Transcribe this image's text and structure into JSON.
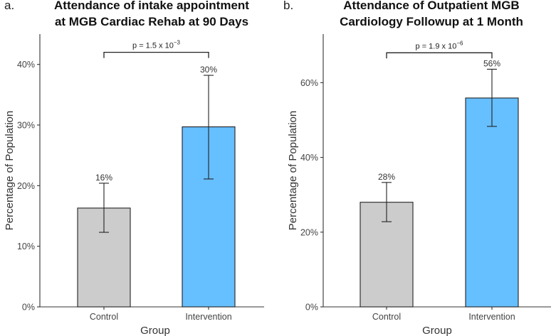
{
  "chart_data": [
    {
      "type": "bar",
      "panel_label": "a.",
      "title_lines": [
        "Attendance of intake appointment",
        "at MGB Cardiac Rehab at 90 Days"
      ],
      "xlabel": "Group",
      "ylabel": "Percentage of Population",
      "categories": [
        "Control",
        "Intervention"
      ],
      "values": [
        16.3,
        29.7
      ],
      "ci_low": [
        12.3,
        21.1
      ],
      "ci_high": [
        20.4,
        38.2
      ],
      "data_labels": [
        "16%",
        "30%"
      ],
      "colors": [
        "#cccccc",
        "#66bfff"
      ],
      "ylim": [
        0,
        45
      ],
      "yticks": [
        0,
        10,
        20,
        30,
        40
      ],
      "ytick_labels": [
        "0%",
        "10%",
        "20%",
        "30%",
        "40%"
      ],
      "pvalue": {
        "base": "p = 1.5 x 10",
        "exponent": "−3",
        "y": 42
      }
    },
    {
      "type": "bar",
      "panel_label": "b.",
      "title_lines": [
        "Attendance of Outpatient MGB",
        "Cardiology Followup at 1 Month"
      ],
      "xlabel": "Group",
      "ylabel": "Percentage of Population",
      "categories": [
        "Control",
        "Intervention"
      ],
      "values": [
        28.0,
        55.9
      ],
      "ci_low": [
        22.8,
        48.3
      ],
      "ci_high": [
        33.3,
        63.6
      ],
      "data_labels": [
        "28%",
        "56%"
      ],
      "colors": [
        "#cccccc",
        "#66bfff"
      ],
      "ylim": [
        0,
        73
      ],
      "yticks": [
        0,
        20,
        40,
        60
      ],
      "ytick_labels": [
        "0%",
        "20%",
        "40%",
        "60%"
      ],
      "pvalue": {
        "base": "p = 1.9 x 10",
        "exponent": "−6",
        "y": 68
      }
    }
  ]
}
